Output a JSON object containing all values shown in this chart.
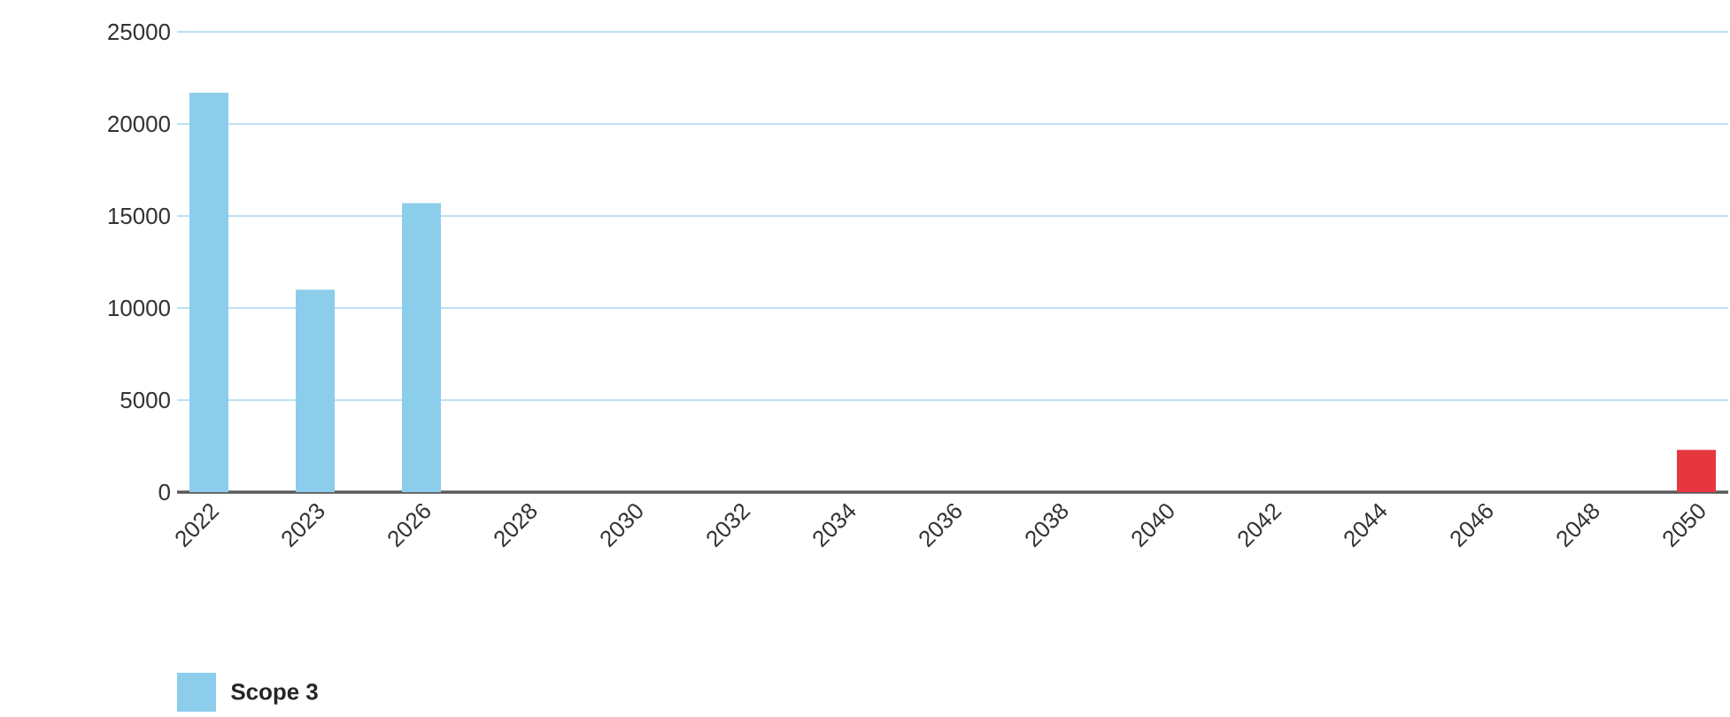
{
  "chart_data": {
    "type": "bar",
    "categories": [
      "2022",
      "2023",
      "2026",
      "2028",
      "2030",
      "2032",
      "2034",
      "2036",
      "2038",
      "2040",
      "2042",
      "2044",
      "2046",
      "2048",
      "2050"
    ],
    "series": [
      {
        "name": "Scope 3",
        "color": "#8ccdeb",
        "values": [
          21700,
          11000,
          15700,
          null,
          null,
          null,
          null,
          null,
          null,
          null,
          null,
          null,
          null,
          null,
          2300
        ],
        "colors": [
          "#8ccdeb",
          "#8ccdeb",
          "#8ccdeb",
          "#8ccdeb",
          "#8ccdeb",
          "#8ccdeb",
          "#8ccdeb",
          "#8ccdeb",
          "#8ccdeb",
          "#8ccdeb",
          "#8ccdeb",
          "#8ccdeb",
          "#8ccdeb",
          "#8ccdeb",
          "#e63740"
        ]
      }
    ],
    "ylim": [
      0,
      25000
    ],
    "yticks": [
      0,
      5000,
      10000,
      15000,
      20000,
      25000
    ],
    "grid": "y",
    "legend": "bottom left"
  }
}
